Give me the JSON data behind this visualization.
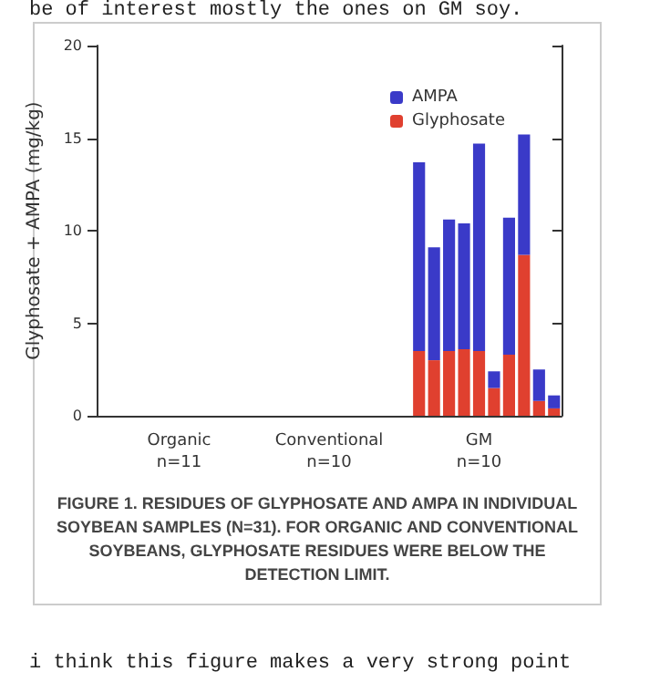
{
  "chart_data": {
    "type": "bar",
    "stacked": true,
    "ylabel": "Glyphosate + AMPA (mg/kg)",
    "categories": [
      null,
      null,
      null,
      null,
      null,
      "Organic\nn=11",
      null,
      null,
      null,
      null,
      null,
      null,
      null,
      null,
      null,
      "Conventional\nn=10",
      null,
      null,
      null,
      null,
      null,
      null,
      null,
      null,
      null,
      "GM\nn=10",
      null,
      null,
      null,
      null,
      null
    ],
    "series": [
      {
        "name": "Glyphosate",
        "color": "#e0402f",
        "values": [
          0,
          0,
          0,
          0,
          0,
          0,
          0,
          0,
          0,
          0,
          0,
          0,
          0,
          0,
          0,
          0,
          0,
          0,
          0,
          0,
          0,
          3.5,
          3.0,
          3.5,
          3.6,
          3.5,
          1.5,
          3.3,
          8.7,
          0.8,
          0.4
        ]
      },
      {
        "name": "AMPA",
        "color": "#3a3ac8",
        "values": [
          0,
          0,
          0,
          0,
          0,
          0,
          0,
          0,
          0,
          0,
          0,
          0,
          0,
          0,
          0,
          0,
          0,
          0,
          0,
          0,
          0,
          10.2,
          6.1,
          7.1,
          6.8,
          11.2,
          0.9,
          7.4,
          6.5,
          1.7,
          0.7
        ]
      }
    ],
    "ylim": [
      0,
      20
    ],
    "yticks": [
      0,
      5,
      10,
      15,
      20
    ],
    "grid": false,
    "legend": "top right",
    "annotations": [
      "be of interest mostly the ones on GM soy.",
      "FIGURE 1. RESIDUES OF GLYPHOSATE AND AMPA IN INDIVIDUAL SOYBEAN SAMPLES (N=31). FOR ORGANIC AND CONVENTIONAL SOYBEANS, GLYPHOSATE RESIDUES WERE BELOW THE DETECTION LIMIT.",
      "i think this figure makes a very strong point"
    ]
  }
}
